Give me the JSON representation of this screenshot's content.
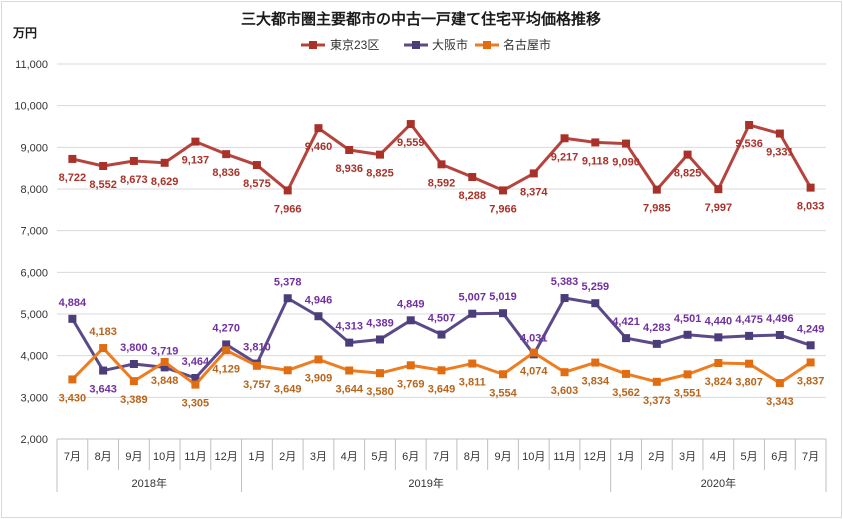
{
  "chart_data": {
    "type": "line",
    "title": "三大都市圏主要都市の中古一戸建て住宅平均価格推移",
    "ylabel": "万円",
    "xlabel": "",
    "ylim": [
      2000,
      11000
    ],
    "yticks": [
      2000,
      3000,
      4000,
      5000,
      6000,
      7000,
      8000,
      9000,
      10000,
      11000
    ],
    "grid": true,
    "legend": "top-center",
    "categories": [
      "7月",
      "8月",
      "9月",
      "10月",
      "11月",
      "12月",
      "1月",
      "2月",
      "3月",
      "4月",
      "5月",
      "6月",
      "7月",
      "8月",
      "9月",
      "10月",
      "11月",
      "12月",
      "1月",
      "2月",
      "3月",
      "4月",
      "5月",
      "6月",
      "7月"
    ],
    "year_groups": [
      {
        "label": "2018年",
        "months": 6
      },
      {
        "label": "2019年",
        "months": 12
      },
      {
        "label": "2020年",
        "months": 7
      }
    ],
    "series": [
      {
        "name": "東京23区",
        "color": "#b5443f",
        "label_color": "#a8322a",
        "values": [
          8722,
          8552,
          8673,
          8629,
          9137,
          8836,
          8575,
          7966,
          9460,
          8936,
          8825,
          9559,
          8592,
          8288,
          7966,
          8374,
          9217,
          9118,
          9090,
          7985,
          8825,
          7997,
          9536,
          9331,
          8033
        ]
      },
      {
        "name": "大阪市",
        "color": "#5a4a8a",
        "label_color": "#7030a0",
        "values": [
          4884,
          3643,
          3800,
          3719,
          3464,
          4270,
          3810,
          5378,
          4946,
          4313,
          4389,
          4849,
          4507,
          5007,
          5019,
          4031,
          5383,
          5259,
          4421,
          4283,
          4501,
          4440,
          4475,
          4496,
          4249
        ]
      },
      {
        "name": "名古屋市",
        "color": "#ee7d22",
        "label_color": "#b8651b",
        "values": [
          3430,
          4183,
          3389,
          3848,
          3305,
          4129,
          3757,
          3649,
          3909,
          3644,
          3580,
          3769,
          3649,
          3811,
          3554,
          4074,
          3603,
          3834,
          3562,
          3373,
          3551,
          3824,
          3807,
          3343,
          3837
        ]
      }
    ]
  }
}
